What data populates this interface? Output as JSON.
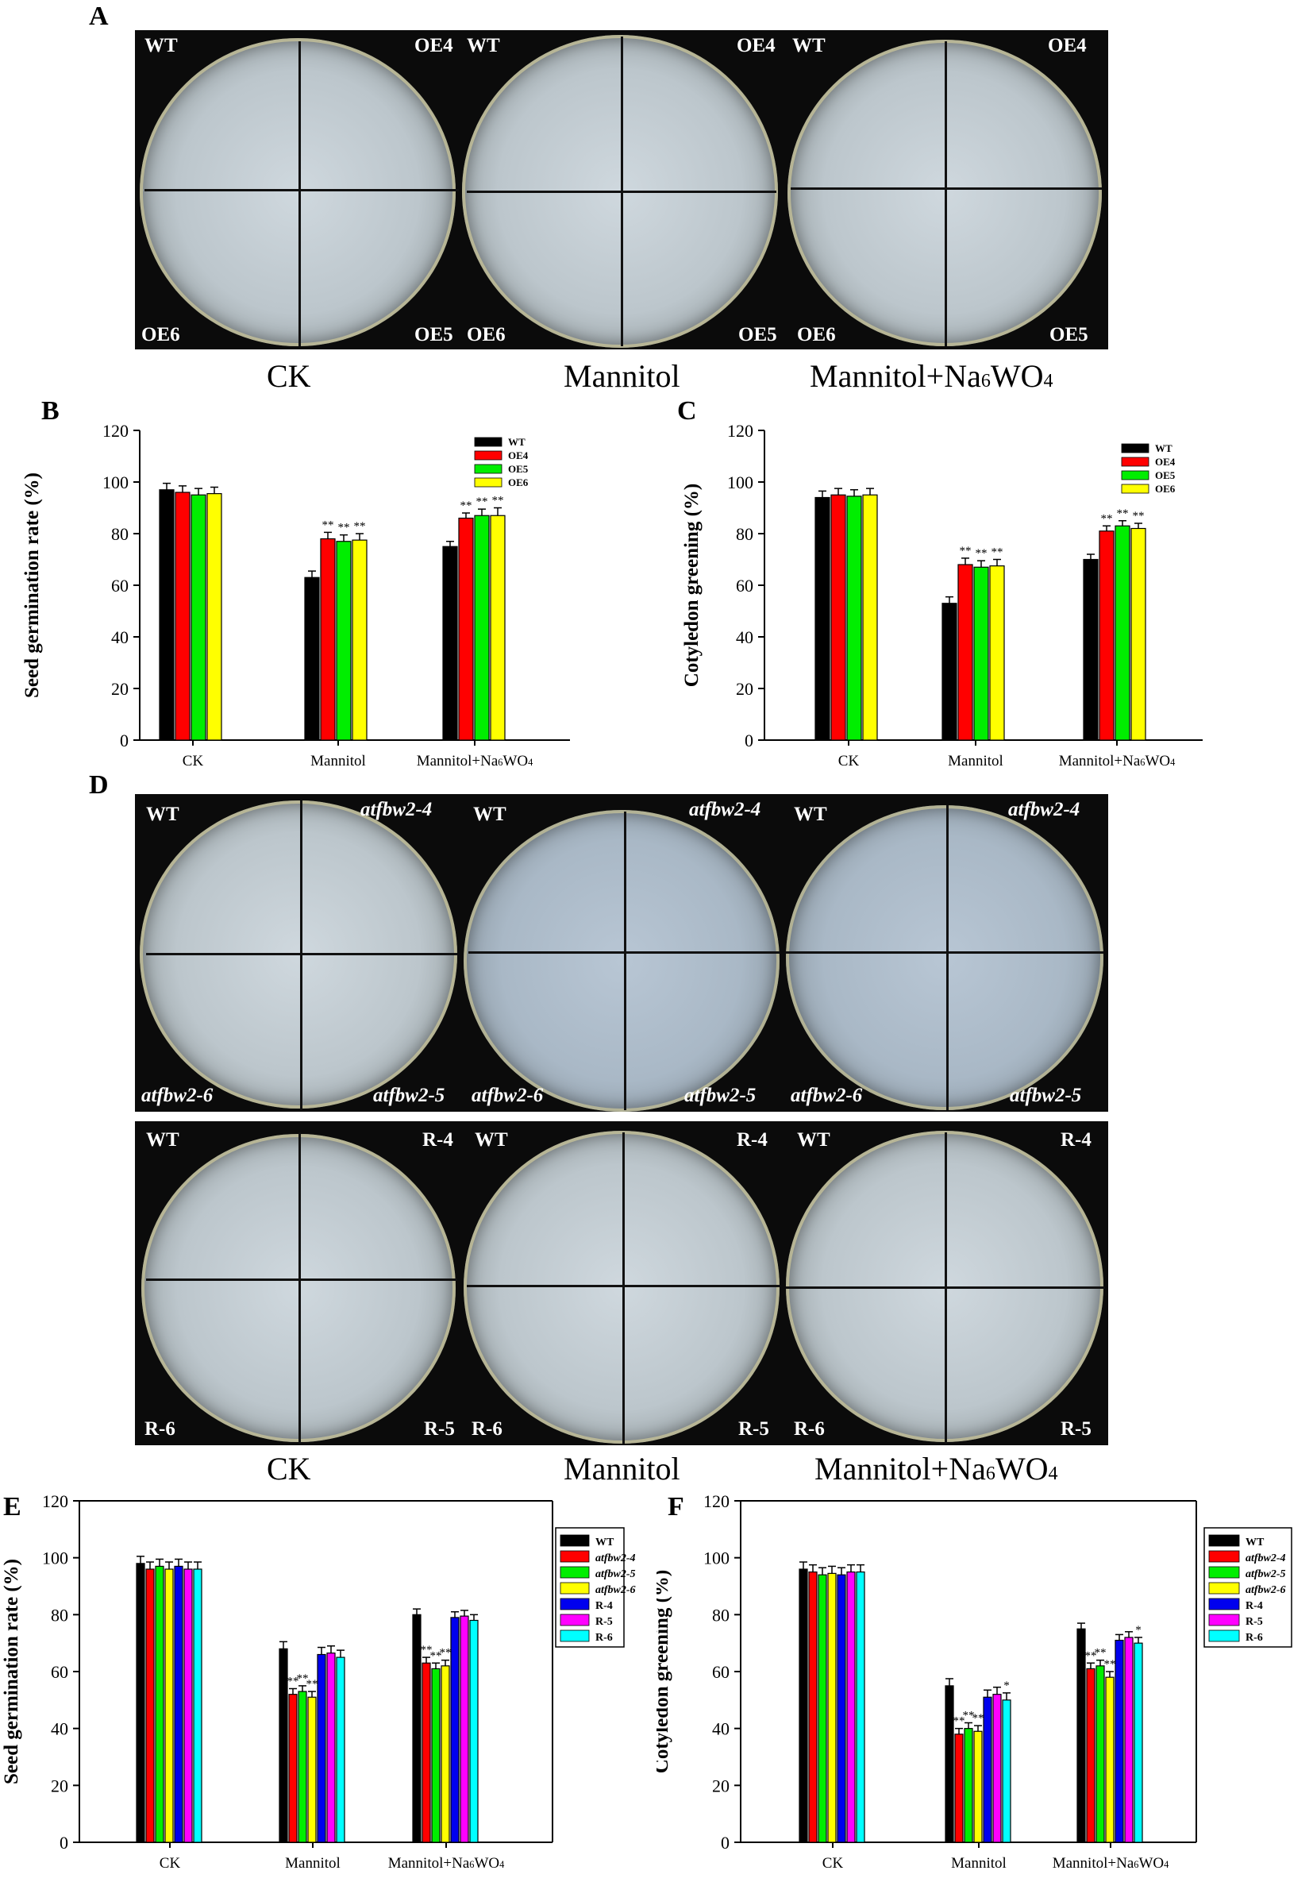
{
  "panels": {
    "A": "A",
    "B": "B",
    "C": "C",
    "D": "D",
    "E": "E",
    "F": "F"
  },
  "plates_A": [
    {
      "tl": "WT",
      "tr": "OE4",
      "bl": "OE6",
      "br": "OE5"
    },
    {
      "tl": "WT",
      "tr": "OE4",
      "bl": "OE6",
      "br": "OE5"
    },
    {
      "tl": "WT",
      "tr": "OE4",
      "bl": "OE6",
      "br": "OE5"
    }
  ],
  "plates_D_top": [
    {
      "tl": "WT",
      "tr": "atfbw2-4",
      "bl": "atfbw2-6",
      "br": "atfbw2-5"
    },
    {
      "tl": "WT",
      "tr": "atfbw2-4",
      "bl": "atfbw2-6",
      "br": "atfbw2-5"
    },
    {
      "tl": "WT",
      "tr": "atfbw2-4",
      "bl": "atfbw2-6",
      "br": "atfbw2-5"
    }
  ],
  "plates_D_bottom": [
    {
      "tl": "WT",
      "tr": "R-4",
      "bl": "R-6",
      "br": "R-5"
    },
    {
      "tl": "WT",
      "tr": "R-4",
      "bl": "R-6",
      "br": "R-5"
    },
    {
      "tl": "WT",
      "tr": "R-4",
      "bl": "R-6",
      "br": "R-5"
    }
  ],
  "conditions": [
    "CK",
    "Mannitol",
    "Mannitol+Na6WO4"
  ],
  "conditions_display": {
    "ck": "CK",
    "mannitol": "Mannitol",
    "mannitol_pre": "Mannitol+Na",
    "sub6": "6",
    "wo": "WO",
    "sub4": "4"
  },
  "chart_data": [
    {
      "id": "B",
      "type": "bar",
      "categories": [
        "CK",
        "Mannitol",
        "Mannitol+Na6WO4"
      ],
      "ylabel": "Seed germination rate (%)",
      "ylim": [
        0,
        120
      ],
      "yticks": [
        0,
        20,
        40,
        60,
        80,
        100,
        120
      ],
      "legend": "top-right",
      "series": [
        {
          "name": "WT",
          "color": "#000000",
          "values": [
            97,
            63,
            75
          ],
          "err": [
            2.5,
            2.5,
            2
          ],
          "sig": [
            "",
            "",
            ""
          ]
        },
        {
          "name": "OE4",
          "color": "#ff0000",
          "values": [
            96,
            78,
            86
          ],
          "err": [
            2.5,
            2.5,
            2
          ],
          "sig": [
            "",
            "**",
            "**"
          ]
        },
        {
          "name": "OE5",
          "color": "#00ee00",
          "values": [
            95,
            77,
            87
          ],
          "err": [
            2.5,
            2.5,
            2.5
          ],
          "sig": [
            "",
            "**",
            "**"
          ]
        },
        {
          "name": "OE6",
          "color": "#ffff00",
          "values": [
            95.5,
            77.5,
            87
          ],
          "err": [
            2.5,
            2.5,
            3
          ],
          "sig": [
            "",
            "**",
            "**"
          ]
        }
      ]
    },
    {
      "id": "C",
      "type": "bar",
      "categories": [
        "CK",
        "Mannitol",
        "Mannitol+Na6WO4"
      ],
      "ylabel": "Cotyledon greening (%)",
      "ylim": [
        0,
        120
      ],
      "yticks": [
        0,
        20,
        40,
        60,
        80,
        100,
        120
      ],
      "legend": "top-right",
      "series": [
        {
          "name": "WT",
          "color": "#000000",
          "values": [
            94,
            53,
            70
          ],
          "err": [
            2.5,
            2.5,
            2
          ],
          "sig": [
            "",
            "",
            ""
          ]
        },
        {
          "name": "OE4",
          "color": "#ff0000",
          "values": [
            95,
            68,
            81
          ],
          "err": [
            2.5,
            2.5,
            2
          ],
          "sig": [
            "",
            "**",
            "**"
          ]
        },
        {
          "name": "OE5",
          "color": "#00ee00",
          "values": [
            94.5,
            67,
            83
          ],
          "err": [
            2.5,
            2.5,
            2
          ],
          "sig": [
            "",
            "**",
            "**"
          ]
        },
        {
          "name": "OE6",
          "color": "#ffff00",
          "values": [
            95,
            67.5,
            82
          ],
          "err": [
            2.5,
            2.5,
            2
          ],
          "sig": [
            "",
            "**",
            "**"
          ]
        }
      ]
    },
    {
      "id": "E",
      "type": "bar",
      "categories": [
        "CK",
        "Mannitol",
        "Mannitol+Na6WO4"
      ],
      "ylabel": "Seed germination rate (%)",
      "ylim": [
        0,
        120
      ],
      "yticks": [
        0,
        20,
        40,
        60,
        80,
        100,
        120
      ],
      "legend": "top-right",
      "series": [
        {
          "name": "WT",
          "color": "#000000",
          "values": [
            98,
            68,
            80
          ],
          "err": [
            2.5,
            2.5,
            2
          ],
          "sig": [
            "",
            "",
            ""
          ]
        },
        {
          "name": "atfbw2-4",
          "color": "#ff0000",
          "values": [
            96,
            52,
            63
          ],
          "err": [
            2.5,
            2,
            2
          ],
          "sig": [
            "",
            "**",
            "**"
          ]
        },
        {
          "name": "atfbw2-5",
          "color": "#00ee00",
          "values": [
            97,
            53,
            61
          ],
          "err": [
            2.5,
            2,
            2
          ],
          "sig": [
            "",
            "**",
            "**"
          ]
        },
        {
          "name": "atfbw2-6",
          "color": "#ffff00",
          "values": [
            96,
            51,
            62
          ],
          "err": [
            2.5,
            2,
            2
          ],
          "sig": [
            "",
            "**",
            "**"
          ]
        },
        {
          "name": "R-4",
          "color": "#0000ee",
          "values": [
            97,
            66,
            79
          ],
          "err": [
            2.5,
            2.5,
            2
          ],
          "sig": [
            "",
            "",
            ""
          ]
        },
        {
          "name": "R-5",
          "color": "#ff00ff",
          "values": [
            96,
            66.5,
            79.5
          ],
          "err": [
            2.5,
            2.5,
            2
          ],
          "sig": [
            "",
            "",
            ""
          ]
        },
        {
          "name": "R-6",
          "color": "#00ffff",
          "values": [
            96,
            65,
            78
          ],
          "err": [
            2.5,
            2.5,
            2
          ],
          "sig": [
            "",
            "",
            ""
          ]
        }
      ]
    },
    {
      "id": "F",
      "type": "bar",
      "categories": [
        "CK",
        "Mannitol",
        "Mannitol+Na6WO4"
      ],
      "ylabel": "Cotyledon greening (%)",
      "ylim": [
        0,
        120
      ],
      "yticks": [
        0,
        20,
        40,
        60,
        80,
        100,
        120
      ],
      "legend": "top-right",
      "series": [
        {
          "name": "WT",
          "color": "#000000",
          "values": [
            96,
            55,
            75
          ],
          "err": [
            2.5,
            2.5,
            2
          ],
          "sig": [
            "",
            "",
            ""
          ]
        },
        {
          "name": "atfbw2-4",
          "color": "#ff0000",
          "values": [
            95,
            38,
            61
          ],
          "err": [
            2.5,
            2,
            2
          ],
          "sig": [
            "",
            "**",
            "**"
          ]
        },
        {
          "name": "atfbw2-5",
          "color": "#00ee00",
          "values": [
            94,
            40,
            62
          ],
          "err": [
            2.5,
            2,
            2
          ],
          "sig": [
            "",
            "**",
            "**"
          ]
        },
        {
          "name": "atfbw2-6",
          "color": "#ffff00",
          "values": [
            94.5,
            39,
            58
          ],
          "err": [
            2.5,
            2,
            2
          ],
          "sig": [
            "",
            "**",
            "**"
          ]
        },
        {
          "name": "R-4",
          "color": "#0000ee",
          "values": [
            94,
            51,
            71
          ],
          "err": [
            2.5,
            2.5,
            2
          ],
          "sig": [
            "",
            "",
            ""
          ]
        },
        {
          "name": "R-5",
          "color": "#ff00ff",
          "values": [
            95,
            52,
            72
          ],
          "err": [
            2.5,
            2.5,
            2
          ],
          "sig": [
            "",
            "",
            ""
          ]
        },
        {
          "name": "R-6",
          "color": "#00ffff",
          "values": [
            95,
            50,
            70
          ],
          "err": [
            2.5,
            2.5,
            2
          ],
          "sig": [
            "",
            "*",
            "*"
          ]
        }
      ]
    }
  ]
}
